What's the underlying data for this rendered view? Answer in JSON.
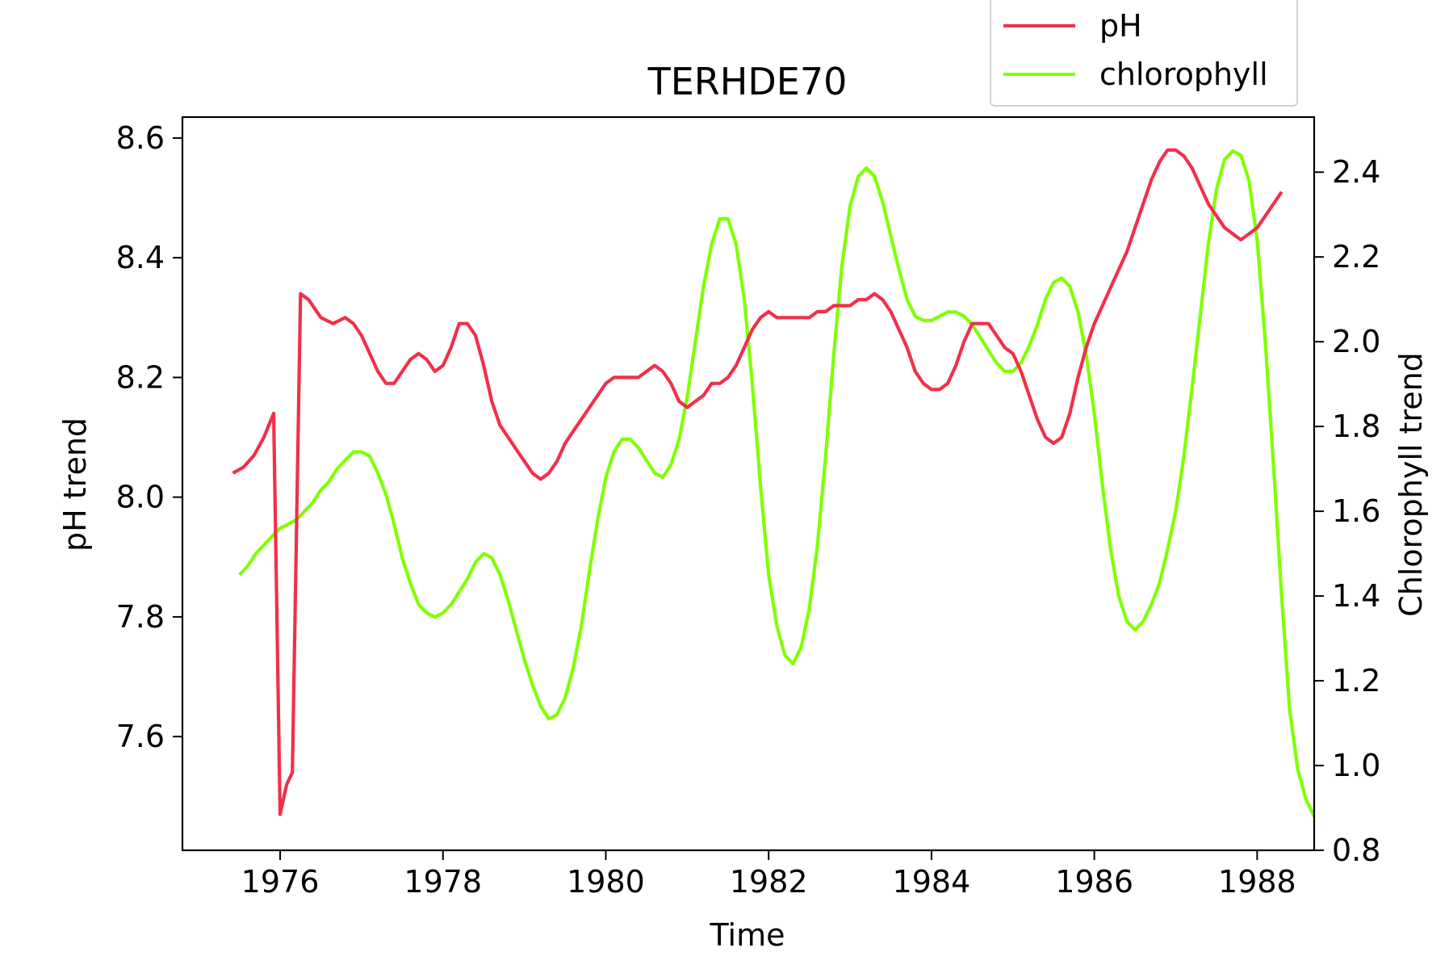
{
  "chart_data": {
    "type": "line",
    "title": "TERHDE70",
    "xlabel": "Time",
    "ylabel_left": "pH trend",
    "ylabel_right": "Chlorophyll trend",
    "xlim": [
      1974.8,
      1988.7
    ],
    "ylim_left": [
      7.41,
      8.635
    ],
    "ylim_right": [
      0.8,
      2.53
    ],
    "x_ticks": [
      1976,
      1978,
      1980,
      1982,
      1984,
      1986,
      1988
    ],
    "y_ticks_left": [
      7.6,
      7.8,
      8.0,
      8.2,
      8.4,
      8.6
    ],
    "y_ticks_right": [
      0.8,
      1.0,
      1.2,
      1.4,
      1.6,
      1.8,
      2.0,
      2.2,
      2.4
    ],
    "legend_position": "upper-right, outside above axes",
    "grid": false,
    "series": [
      {
        "name": "pH",
        "axis": "left",
        "color": "#f0304a",
        "points": [
          [
            1975.42,
            8.04
          ],
          [
            1975.55,
            8.05
          ],
          [
            1975.68,
            8.07
          ],
          [
            1975.8,
            8.1
          ],
          [
            1975.92,
            8.14
          ],
          [
            1976.0,
            7.47
          ],
          [
            1976.08,
            7.52
          ],
          [
            1976.15,
            7.54
          ],
          [
            1976.25,
            8.34
          ],
          [
            1976.35,
            8.33
          ],
          [
            1976.5,
            8.3
          ],
          [
            1976.65,
            8.29
          ],
          [
            1976.8,
            8.3
          ],
          [
            1976.9,
            8.29
          ],
          [
            1977.0,
            8.27
          ],
          [
            1977.1,
            8.24
          ],
          [
            1977.2,
            8.21
          ],
          [
            1977.3,
            8.19
          ],
          [
            1977.4,
            8.19
          ],
          [
            1977.5,
            8.21
          ],
          [
            1977.6,
            8.23
          ],
          [
            1977.7,
            8.24
          ],
          [
            1977.8,
            8.23
          ],
          [
            1977.9,
            8.21
          ],
          [
            1978.0,
            8.22
          ],
          [
            1978.1,
            8.25
          ],
          [
            1978.2,
            8.29
          ],
          [
            1978.3,
            8.29
          ],
          [
            1978.4,
            8.27
          ],
          [
            1978.5,
            8.22
          ],
          [
            1978.6,
            8.16
          ],
          [
            1978.7,
            8.12
          ],
          [
            1978.8,
            8.1
          ],
          [
            1978.9,
            8.08
          ],
          [
            1979.0,
            8.06
          ],
          [
            1979.1,
            8.04
          ],
          [
            1979.2,
            8.03
          ],
          [
            1979.3,
            8.04
          ],
          [
            1979.4,
            8.06
          ],
          [
            1979.5,
            8.09
          ],
          [
            1979.6,
            8.11
          ],
          [
            1979.7,
            8.13
          ],
          [
            1979.8,
            8.15
          ],
          [
            1979.9,
            8.17
          ],
          [
            1980.0,
            8.19
          ],
          [
            1980.1,
            8.2
          ],
          [
            1980.2,
            8.2
          ],
          [
            1980.3,
            8.2
          ],
          [
            1980.4,
            8.2
          ],
          [
            1980.5,
            8.21
          ],
          [
            1980.6,
            8.22
          ],
          [
            1980.7,
            8.21
          ],
          [
            1980.8,
            8.19
          ],
          [
            1980.9,
            8.16
          ],
          [
            1981.0,
            8.15
          ],
          [
            1981.1,
            8.16
          ],
          [
            1981.2,
            8.17
          ],
          [
            1981.3,
            8.19
          ],
          [
            1981.4,
            8.19
          ],
          [
            1981.5,
            8.2
          ],
          [
            1981.6,
            8.22
          ],
          [
            1981.7,
            8.25
          ],
          [
            1981.8,
            8.28
          ],
          [
            1981.9,
            8.3
          ],
          [
            1982.0,
            8.31
          ],
          [
            1982.1,
            8.3
          ],
          [
            1982.2,
            8.3
          ],
          [
            1982.3,
            8.3
          ],
          [
            1982.4,
            8.3
          ],
          [
            1982.5,
            8.3
          ],
          [
            1982.6,
            8.31
          ],
          [
            1982.7,
            8.31
          ],
          [
            1982.8,
            8.32
          ],
          [
            1982.9,
            8.32
          ],
          [
            1983.0,
            8.32
          ],
          [
            1983.1,
            8.33
          ],
          [
            1983.2,
            8.33
          ],
          [
            1983.3,
            8.34
          ],
          [
            1983.4,
            8.33
          ],
          [
            1983.5,
            8.31
          ],
          [
            1983.6,
            8.28
          ],
          [
            1983.7,
            8.25
          ],
          [
            1983.8,
            8.21
          ],
          [
            1983.9,
            8.19
          ],
          [
            1984.0,
            8.18
          ],
          [
            1984.1,
            8.18
          ],
          [
            1984.2,
            8.19
          ],
          [
            1984.3,
            8.22
          ],
          [
            1984.4,
            8.26
          ],
          [
            1984.5,
            8.29
          ],
          [
            1984.6,
            8.29
          ],
          [
            1984.7,
            8.29
          ],
          [
            1984.8,
            8.27
          ],
          [
            1984.9,
            8.25
          ],
          [
            1985.0,
            8.24
          ],
          [
            1985.1,
            8.21
          ],
          [
            1985.2,
            8.17
          ],
          [
            1985.3,
            8.13
          ],
          [
            1985.4,
            8.1
          ],
          [
            1985.5,
            8.09
          ],
          [
            1985.6,
            8.1
          ],
          [
            1985.7,
            8.14
          ],
          [
            1985.8,
            8.2
          ],
          [
            1985.9,
            8.25
          ],
          [
            1986.0,
            8.29
          ],
          [
            1986.1,
            8.32
          ],
          [
            1986.2,
            8.35
          ],
          [
            1986.3,
            8.38
          ],
          [
            1986.4,
            8.41
          ],
          [
            1986.5,
            8.45
          ],
          [
            1986.6,
            8.49
          ],
          [
            1986.7,
            8.53
          ],
          [
            1986.8,
            8.56
          ],
          [
            1986.9,
            8.58
          ],
          [
            1987.0,
            8.58
          ],
          [
            1987.1,
            8.57
          ],
          [
            1987.2,
            8.55
          ],
          [
            1987.3,
            8.52
          ],
          [
            1987.4,
            8.49
          ],
          [
            1987.5,
            8.47
          ],
          [
            1987.6,
            8.45
          ],
          [
            1987.7,
            8.44
          ],
          [
            1987.8,
            8.43
          ],
          [
            1987.9,
            8.44
          ],
          [
            1988.0,
            8.45
          ],
          [
            1988.1,
            8.47
          ],
          [
            1988.2,
            8.49
          ],
          [
            1988.3,
            8.51
          ]
        ]
      },
      {
        "name": "chlorophyll",
        "axis": "right",
        "color": "#80ff00",
        "points": [
          [
            1975.5,
            1.45
          ],
          [
            1975.6,
            1.47
          ],
          [
            1975.7,
            1.5
          ],
          [
            1975.8,
            1.52
          ],
          [
            1975.9,
            1.54
          ],
          [
            1976.0,
            1.56
          ],
          [
            1976.1,
            1.57
          ],
          [
            1976.2,
            1.58
          ],
          [
            1976.3,
            1.6
          ],
          [
            1976.4,
            1.62
          ],
          [
            1976.5,
            1.65
          ],
          [
            1976.6,
            1.67
          ],
          [
            1976.7,
            1.7
          ],
          [
            1976.8,
            1.72
          ],
          [
            1976.9,
            1.74
          ],
          [
            1977.0,
            1.74
          ],
          [
            1977.1,
            1.73
          ],
          [
            1977.2,
            1.69
          ],
          [
            1977.3,
            1.64
          ],
          [
            1977.4,
            1.57
          ],
          [
            1977.5,
            1.49
          ],
          [
            1977.6,
            1.43
          ],
          [
            1977.7,
            1.38
          ],
          [
            1977.8,
            1.36
          ],
          [
            1977.9,
            1.35
          ],
          [
            1978.0,
            1.36
          ],
          [
            1978.1,
            1.38
          ],
          [
            1978.2,
            1.41
          ],
          [
            1978.3,
            1.44
          ],
          [
            1978.4,
            1.48
          ],
          [
            1978.5,
            1.5
          ],
          [
            1978.6,
            1.49
          ],
          [
            1978.7,
            1.45
          ],
          [
            1978.8,
            1.39
          ],
          [
            1978.9,
            1.32
          ],
          [
            1979.0,
            1.25
          ],
          [
            1979.1,
            1.19
          ],
          [
            1979.2,
            1.14
          ],
          [
            1979.3,
            1.11
          ],
          [
            1979.4,
            1.12
          ],
          [
            1979.5,
            1.16
          ],
          [
            1979.6,
            1.23
          ],
          [
            1979.7,
            1.33
          ],
          [
            1979.8,
            1.46
          ],
          [
            1979.9,
            1.58
          ],
          [
            1980.0,
            1.68
          ],
          [
            1980.1,
            1.74
          ],
          [
            1980.2,
            1.77
          ],
          [
            1980.3,
            1.77
          ],
          [
            1980.4,
            1.75
          ],
          [
            1980.5,
            1.72
          ],
          [
            1980.6,
            1.69
          ],
          [
            1980.7,
            1.68
          ],
          [
            1980.8,
            1.71
          ],
          [
            1980.9,
            1.77
          ],
          [
            1981.0,
            1.87
          ],
          [
            1981.1,
            2.0
          ],
          [
            1981.2,
            2.13
          ],
          [
            1981.3,
            2.23
          ],
          [
            1981.4,
            2.29
          ],
          [
            1981.5,
            2.29
          ],
          [
            1981.6,
            2.23
          ],
          [
            1981.7,
            2.1
          ],
          [
            1981.8,
            1.9
          ],
          [
            1981.9,
            1.66
          ],
          [
            1982.0,
            1.45
          ],
          [
            1982.1,
            1.33
          ],
          [
            1982.2,
            1.26
          ],
          [
            1982.3,
            1.24
          ],
          [
            1982.4,
            1.28
          ],
          [
            1982.5,
            1.37
          ],
          [
            1982.6,
            1.52
          ],
          [
            1982.7,
            1.73
          ],
          [
            1982.8,
            1.97
          ],
          [
            1982.9,
            2.18
          ],
          [
            1983.0,
            2.32
          ],
          [
            1983.1,
            2.39
          ],
          [
            1983.2,
            2.41
          ],
          [
            1983.3,
            2.39
          ],
          [
            1983.4,
            2.33
          ],
          [
            1983.5,
            2.25
          ],
          [
            1983.6,
            2.17
          ],
          [
            1983.7,
            2.1
          ],
          [
            1983.8,
            2.06
          ],
          [
            1983.9,
            2.05
          ],
          [
            1984.0,
            2.05
          ],
          [
            1984.1,
            2.06
          ],
          [
            1984.2,
            2.07
          ],
          [
            1984.3,
            2.07
          ],
          [
            1984.4,
            2.06
          ],
          [
            1984.5,
            2.04
          ],
          [
            1984.6,
            2.01
          ],
          [
            1984.7,
            1.98
          ],
          [
            1984.8,
            1.95
          ],
          [
            1984.9,
            1.93
          ],
          [
            1985.0,
            1.93
          ],
          [
            1985.1,
            1.95
          ],
          [
            1985.2,
            1.99
          ],
          [
            1985.3,
            2.04
          ],
          [
            1985.4,
            2.1
          ],
          [
            1985.5,
            2.14
          ],
          [
            1985.6,
            2.15
          ],
          [
            1985.7,
            2.13
          ],
          [
            1985.8,
            2.07
          ],
          [
            1985.9,
            1.97
          ],
          [
            1986.0,
            1.83
          ],
          [
            1986.1,
            1.66
          ],
          [
            1986.2,
            1.51
          ],
          [
            1986.3,
            1.4
          ],
          [
            1986.4,
            1.34
          ],
          [
            1986.5,
            1.32
          ],
          [
            1986.6,
            1.34
          ],
          [
            1986.7,
            1.38
          ],
          [
            1986.8,
            1.43
          ],
          [
            1986.9,
            1.51
          ],
          [
            1987.0,
            1.6
          ],
          [
            1987.1,
            1.73
          ],
          [
            1987.2,
            1.89
          ],
          [
            1987.3,
            2.06
          ],
          [
            1987.4,
            2.23
          ],
          [
            1987.5,
            2.36
          ],
          [
            1987.6,
            2.43
          ],
          [
            1987.7,
            2.45
          ],
          [
            1987.8,
            2.44
          ],
          [
            1987.9,
            2.38
          ],
          [
            1988.0,
            2.24
          ],
          [
            1988.1,
            2.0
          ],
          [
            1988.2,
            1.71
          ],
          [
            1988.3,
            1.4
          ],
          [
            1988.4,
            1.13
          ],
          [
            1988.5,
            0.99
          ],
          [
            1988.6,
            0.92
          ],
          [
            1988.7,
            0.88
          ]
        ]
      }
    ]
  }
}
